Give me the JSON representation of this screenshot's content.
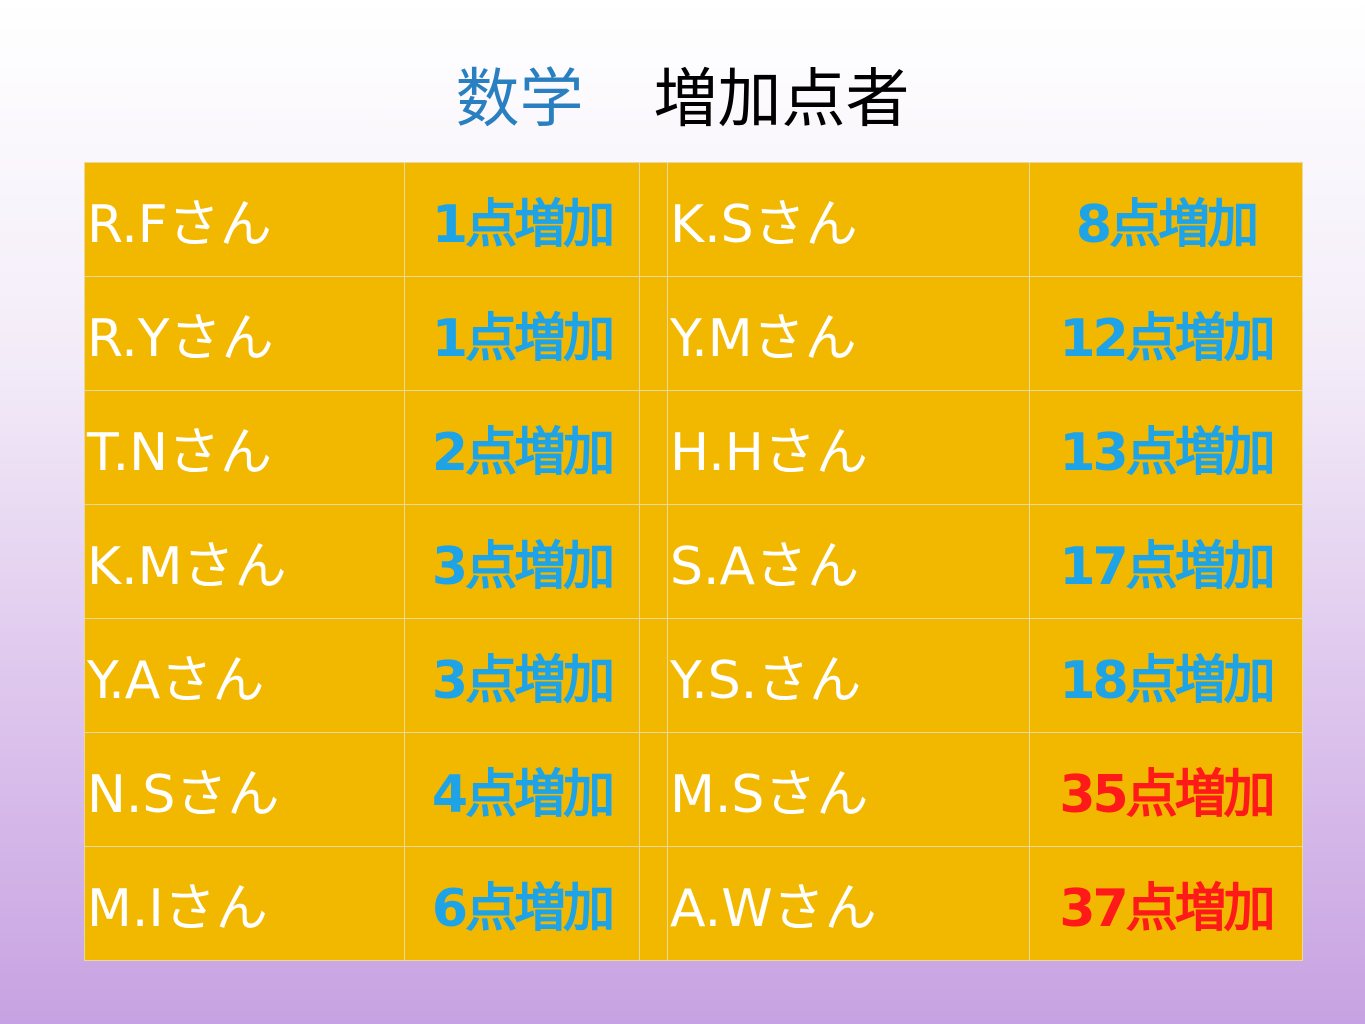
{
  "title": {
    "subject": "数学",
    "text": "増加点者"
  },
  "table": {
    "rows": [
      [
        "R.Fさん",
        {
          "text": "1点増加",
          "color": "#1ea3e6"
        },
        "K.Sさん",
        {
          "text": "8点増加",
          "color": "#1ea3e6"
        }
      ],
      [
        "R.Yさん",
        {
          "text": "1点増加",
          "color": "#1ea3e6"
        },
        "Y.Mさん",
        {
          "text": "12点増加",
          "color": "#1ea3e6"
        }
      ],
      [
        "T.Nさん",
        {
          "text": "2点増加",
          "color": "#1ea3e6"
        },
        "H.Hさん",
        {
          "text": "13点増加",
          "color": "#1ea3e6"
        }
      ],
      [
        "K.Mさん",
        {
          "text": "3点増加",
          "color": "#1ea3e6"
        },
        "S.Aさん",
        {
          "text": "17点増加",
          "color": "#1ea3e6"
        }
      ],
      [
        "Y.Aさん",
        {
          "text": "3点増加",
          "color": "#1ea3e6"
        },
        "Y.S.さん",
        {
          "text": "18点増加",
          "color": "#1ea3e6"
        }
      ],
      [
        "N.Sさん",
        {
          "text": "4点増加",
          "color": "#1ea3e6"
        },
        "M.Sさん",
        {
          "text": "35点増加",
          "color": "#ff1a1a"
        }
      ],
      [
        "M.Iさん",
        {
          "text": "6点増加",
          "color": "#1ea3e6"
        },
        "A.Wさん",
        {
          "text": "37点増加",
          "color": "#ff1a1a"
        }
      ]
    ]
  }
}
